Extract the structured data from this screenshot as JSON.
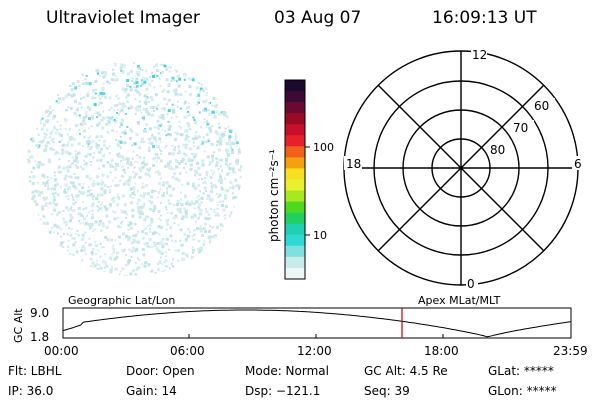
{
  "header": {
    "instrument": "Ultraviolet Imager",
    "date": "03 Aug 07",
    "time": "16:09:13 UT"
  },
  "colorbar": {
    "unit_label": "photon cm⁻²s⁻¹",
    "tick_labels": [
      "100",
      "10"
    ],
    "colors_top_to_bottom": [
      "#1a0a2e",
      "#3d0a35",
      "#6a0a30",
      "#9a0a25",
      "#c8102a",
      "#e8202a",
      "#f06018",
      "#f5a010",
      "#f8e020",
      "#e8f030",
      "#a8e820",
      "#50d820",
      "#20d060",
      "#20d0b0",
      "#30d8d8",
      "#80e0e0",
      "#c8ecec",
      "#eef6f6"
    ]
  },
  "polar_plot": {
    "mlt_labels": {
      "top": "12",
      "left": "18",
      "right": "6",
      "bottom": "0"
    },
    "lat_labels": [
      "60",
      "70",
      "80"
    ]
  },
  "timeline": {
    "left_label": "Geographic Lat/Lon",
    "right_label": "Apex MLat/MLT",
    "axis_title": "GC Alt",
    "y_ticks": [
      "9.0",
      "1.8"
    ],
    "x_ticks": [
      "00:00",
      "06:00",
      "12:00",
      "18:00",
      "23:59"
    ],
    "current_time_marker": "16:09",
    "marker_color": "#cc0000"
  },
  "status": {
    "flt": "Flt: LBHL",
    "ip": "IP: 36.0",
    "door": "Door: Open",
    "gain": "Gain: 14",
    "mode": "Mode: Normal",
    "dsp": "Dsp: −121.1",
    "gc_alt": "GC Alt: 4.5 Re",
    "seq": "Seq: 39",
    "glat": "GLat: *****",
    "glon": "GLon: *****"
  }
}
